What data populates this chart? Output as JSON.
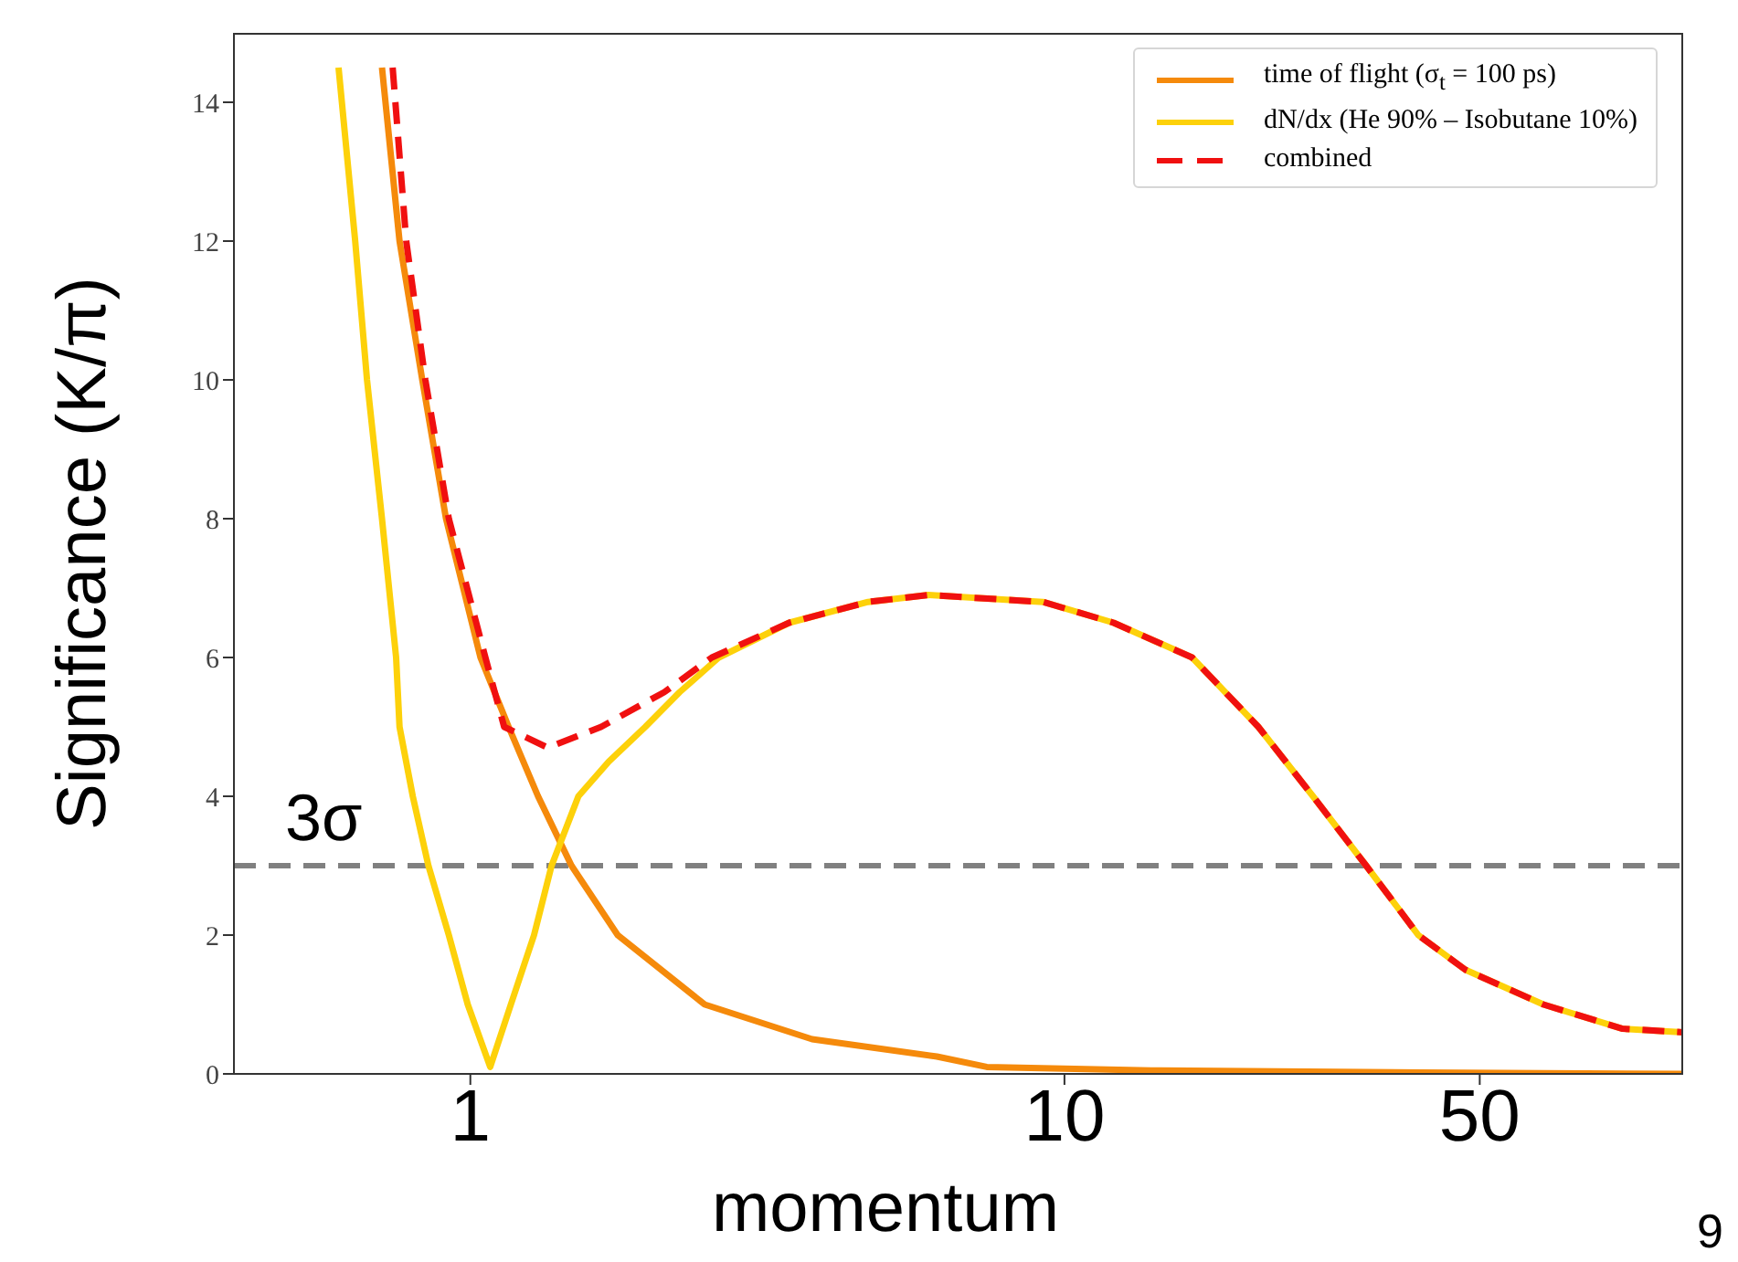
{
  "chart_data": {
    "type": "line",
    "xlabel": "momentum",
    "ylabel": "Significance (K/π)",
    "log": "x",
    "xlim": [
      0.4,
      110
    ],
    "xticks": [
      1,
      10,
      50
    ],
    "ylim": [
      0,
      15
    ],
    "yticks": [
      0,
      2,
      4,
      6,
      8,
      10,
      12,
      14
    ],
    "legend": "top right",
    "marker": "none",
    "series": [
      {
        "name": "time of flight (σ$_{t}$ = 100 ps)",
        "color": "#f58a0b",
        "line_style": "solid",
        "x": [
          0.71,
          0.76,
          0.83,
          0.91,
          1.04,
          1.16,
          1.3,
          1.48,
          1.77,
          2.48,
          3.76,
          6.1,
          7.4,
          14,
          40,
          110
        ],
        "values": [
          14.5,
          12,
          10,
          8,
          6,
          5,
          4,
          3,
          2,
          1,
          0.5,
          0.25,
          0.1,
          0.05,
          0.02,
          0
        ]
      },
      {
        "name": "dN/dx (He 90% – Isobutane 10%)",
        "color": "#fdd10a",
        "line_style": "solid",
        "x": [
          0.6,
          0.64,
          0.67,
          0.71,
          0.75,
          0.76,
          0.8,
          0.85,
          0.92,
          0.99,
          1.08,
          1.17,
          1.28,
          1.37,
          1.52,
          1.71,
          1.97,
          2.25,
          2.62,
          3.44,
          4.67,
          5.9,
          9.2,
          12.1,
          16.4,
          21.2,
          26.2,
          32.2,
          39.4,
          47.3,
          64,
          87,
          110
        ],
        "values": [
          14.5,
          12,
          10,
          8,
          6,
          5,
          4,
          3,
          2,
          1,
          0.1,
          1,
          2,
          3,
          4,
          4.5,
          5,
          5.5,
          6,
          6.5,
          6.8,
          6.9,
          6.8,
          6.5,
          6,
          5,
          4,
          3,
          2,
          1.5,
          1,
          0.65,
          0.6
        ]
      },
      {
        "name": "combined",
        "color": "#f01010",
        "line_style": "dashed",
        "x": [
          0.74,
          0.78,
          0.84,
          0.92,
          1.06,
          1.14,
          1.35,
          1.66,
          2.12,
          2.55,
          3.44,
          4.67,
          5.9,
          9.2,
          12.1,
          16.4,
          21.2,
          26.2,
          32.2,
          39.4,
          47.3,
          64,
          87,
          110
        ],
        "values": [
          14.5,
          12,
          10,
          8,
          6,
          5,
          4.7,
          5,
          5.5,
          6,
          6.5,
          6.8,
          6.9,
          6.8,
          6.5,
          6,
          5,
          4,
          3,
          2,
          1.5,
          1,
          0.65,
          0.6
        ]
      }
    ],
    "ref_lines": [
      {
        "axis": "y",
        "value": 3,
        "label": "3σ",
        "color": "#808080",
        "line_style": "dashed"
      }
    ],
    "annotations": [
      "9"
    ]
  }
}
